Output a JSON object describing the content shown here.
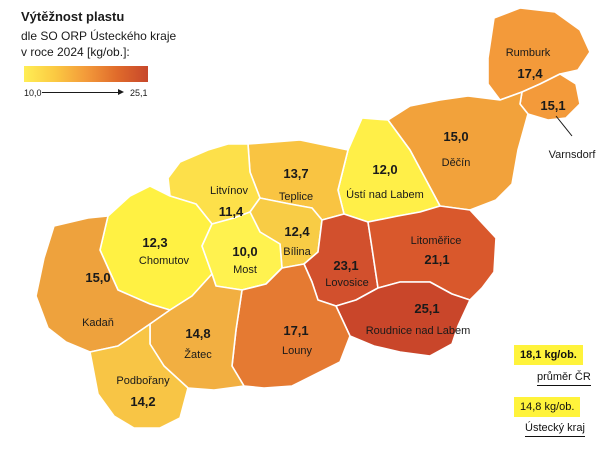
{
  "title": "Výtěžnost plastu",
  "subtitle_lines": [
    "dle SO ORP Ústeckého kraje",
    "v roce 2024 [kg/ob.]:"
  ],
  "legend": {
    "min": "10,0",
    "max": "25,1"
  },
  "regions": [
    {
      "name": "Rumburk",
      "value": "17,4",
      "fill": "#f39a3a"
    },
    {
      "name": "Varnsdorf",
      "value": "15,1",
      "fill": "#f39a3a"
    },
    {
      "name": "Děčín",
      "value": "15,0",
      "fill": "#f2a23b"
    },
    {
      "name": "Ústí nad Labem",
      "value": "12,0",
      "fill": "#ffef48"
    },
    {
      "name": "Teplice",
      "value": "13,7",
      "fill": "#f9c442"
    },
    {
      "name": "Litvínov",
      "value": "11,4",
      "fill": "#fde04a"
    },
    {
      "name": "Bílina",
      "value": "12,4",
      "fill": "#f8cc45"
    },
    {
      "name": "Chomutov",
      "value": "12,3",
      "fill": "#fff143"
    },
    {
      "name": "Most",
      "value": "10,0",
      "fill": "#fff24f"
    },
    {
      "name": "Lovosice",
      "value": "23,1",
      "fill": "#d2502d"
    },
    {
      "name": "Litoměřice",
      "value": "21,1",
      "fill": "#d9582c"
    },
    {
      "name": "Roudnice nad Labem",
      "value": "25,1",
      "fill": "#c9462a"
    },
    {
      "name": "Louny",
      "value": "17,1",
      "fill": "#e57a32"
    },
    {
      "name": "Kadaň",
      "value": "15,0",
      "fill": "#eea23d"
    },
    {
      "name": "Žatec",
      "value": "14,8",
      "fill": "#f2af41"
    },
    {
      "name": "Podbořany",
      "value": "14,2",
      "fill": "#f8c545"
    }
  ],
  "summary": [
    {
      "value": "18,1 kg/ob.",
      "label": "průměr ČR"
    },
    {
      "value": "14,8 kg/ob.",
      "label": "Ústecký kraj"
    }
  ]
}
